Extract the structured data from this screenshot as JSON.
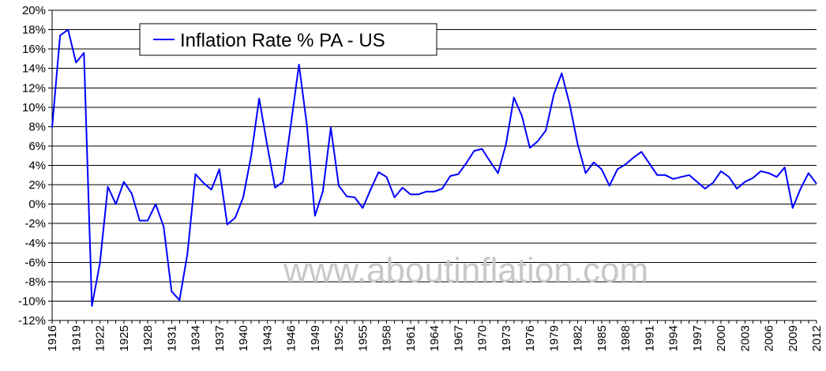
{
  "chart_data": {
    "type": "line",
    "title": "",
    "xlabel": "",
    "ylabel": "",
    "ylim": [
      -12,
      20
    ],
    "y_ticks": [
      -12,
      -10,
      -8,
      -6,
      -4,
      -2,
      0,
      2,
      4,
      6,
      8,
      10,
      12,
      14,
      16,
      18,
      20
    ],
    "y_tick_suffix": "%",
    "x_tick_labels": [
      "1916",
      "1919",
      "1922",
      "1925",
      "1928",
      "1931",
      "1934",
      "1937",
      "1940",
      "1943",
      "1946",
      "1949",
      "1952",
      "1955",
      "1958",
      "1961",
      "1964",
      "1967",
      "1970",
      "1973",
      "1976",
      "1979",
      "1982",
      "1985",
      "1988",
      "1991",
      "1994",
      "1997",
      "2000",
      "2003",
      "2006",
      "2009",
      "2012"
    ],
    "grid": true,
    "legend": "top-left",
    "watermark": "www.aboutinflation.com",
    "series": [
      {
        "name": "Inflation Rate % PA - US",
        "color": "#0000ff",
        "x": [
          1916,
          1917,
          1918,
          1919,
          1920,
          1921,
          1922,
          1923,
          1924,
          1925,
          1926,
          1927,
          1928,
          1929,
          1930,
          1931,
          1932,
          1933,
          1934,
          1935,
          1936,
          1937,
          1938,
          1939,
          1940,
          1941,
          1942,
          1943,
          1944,
          1945,
          1946,
          1947,
          1948,
          1949,
          1950,
          1951,
          1952,
          1953,
          1954,
          1955,
          1956,
          1957,
          1958,
          1959,
          1960,
          1961,
          1962,
          1963,
          1964,
          1965,
          1966,
          1967,
          1968,
          1969,
          1970,
          1971,
          1972,
          1973,
          1974,
          1975,
          1976,
          1977,
          1978,
          1979,
          1980,
          1981,
          1982,
          1983,
          1984,
          1985,
          1986,
          1987,
          1988,
          1989,
          1990,
          1991,
          1992,
          1993,
          1994,
          1995,
          1996,
          1997,
          1998,
          1999,
          2000,
          2001,
          2002,
          2003,
          2004,
          2005,
          2006,
          2007,
          2008,
          2009,
          2010,
          2011,
          2012
        ],
        "values": [
          7.9,
          17.4,
          18.0,
          14.6,
          15.6,
          -10.5,
          -6.1,
          1.8,
          0.0,
          2.3,
          1.1,
          -1.7,
          -1.7,
          0.0,
          -2.3,
          -9.0,
          -9.9,
          -5.1,
          3.1,
          2.2,
          1.5,
          3.6,
          -2.1,
          -1.4,
          0.7,
          5.0,
          10.9,
          6.1,
          1.7,
          2.3,
          8.3,
          14.4,
          8.1,
          -1.2,
          1.3,
          7.9,
          1.9,
          0.8,
          0.7,
          -0.4,
          1.5,
          3.3,
          2.8,
          0.7,
          1.7,
          1.0,
          1.0,
          1.3,
          1.3,
          1.6,
          2.9,
          3.1,
          4.2,
          5.5,
          5.7,
          4.4,
          3.2,
          6.2,
          11.0,
          9.1,
          5.8,
          6.5,
          7.6,
          11.3,
          13.5,
          10.3,
          6.2,
          3.2,
          4.3,
          3.6,
          1.9,
          3.6,
          4.1,
          4.8,
          5.4,
          4.2,
          3.0,
          3.0,
          2.6,
          2.8,
          3.0,
          2.3,
          1.6,
          2.2,
          3.4,
          2.8,
          1.6,
          2.3,
          2.7,
          3.4,
          3.2,
          2.8,
          3.8,
          -0.4,
          1.6,
          3.2,
          2.1
        ]
      }
    ]
  }
}
